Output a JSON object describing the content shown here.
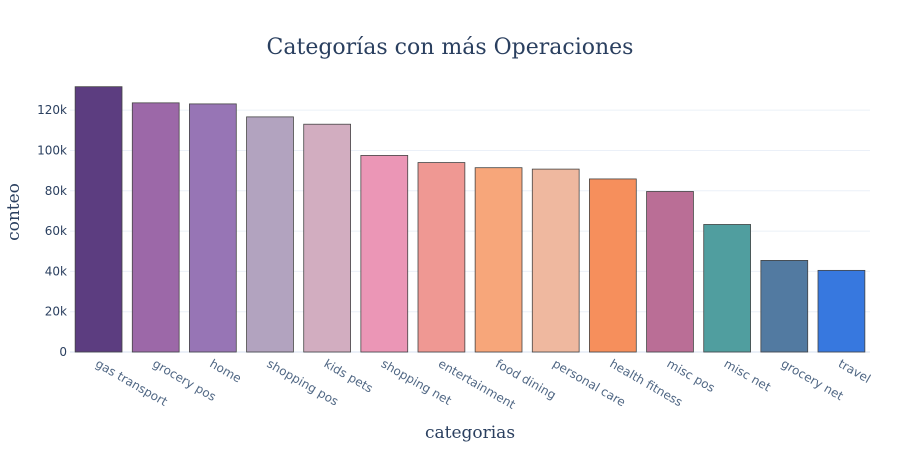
{
  "chart_data": {
    "type": "bar",
    "title": "Categorías con más Operaciones",
    "xlabel": "categorias",
    "ylabel": "conteo",
    "ylim": [
      0,
      132000
    ],
    "yticks": [
      0,
      20000,
      40000,
      60000,
      80000,
      100000,
      120000
    ],
    "ytick_labels": [
      "0",
      "20k",
      "40k",
      "60k",
      "80k",
      "100k",
      "120k"
    ],
    "grid": true,
    "categories": [
      "gas transport",
      "grocery pos",
      "home",
      "shopping pos",
      "kids pets",
      "shopping net",
      "entertainment",
      "food dining",
      "personal care",
      "health fitness",
      "misc pos",
      "misc net",
      "grocery net",
      "travel"
    ],
    "values": [
      131659,
      123638,
      123115,
      116672,
      113035,
      97543,
      94014,
      91461,
      90758,
      85879,
      79655,
      63287,
      45452,
      40507
    ],
    "colors": [
      "#5c3d80",
      "#9c68a8",
      "#9775b5",
      "#b2a3bf",
      "#d2adc0",
      "#eb96b6",
      "#ef9893",
      "#f7a67a",
      "#efb89f",
      "#f68f5c",
      "#ba6e96",
      "#509e9f",
      "#527aa1",
      "#3778df"
    ]
  }
}
